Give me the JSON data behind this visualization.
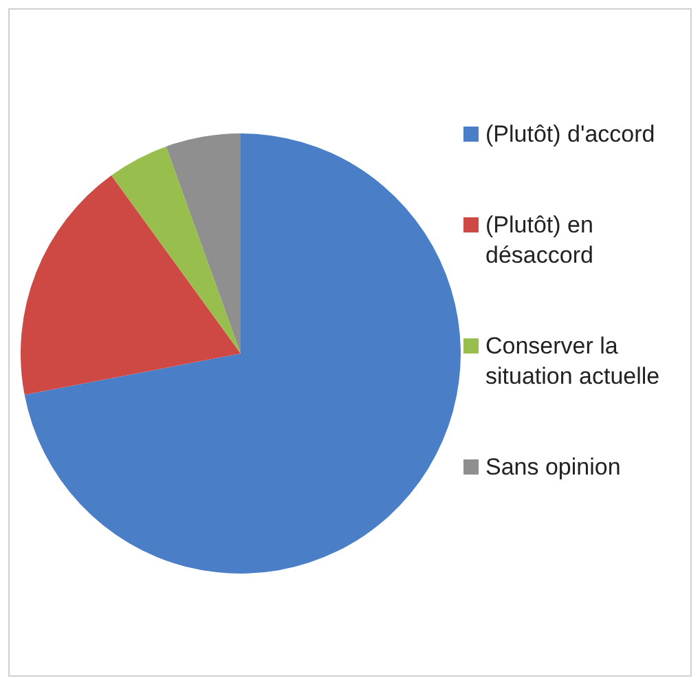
{
  "chart_data": {
    "type": "pie",
    "categories": [
      "(Plutôt) d'accord",
      "(Plutôt) en désaccord",
      "Conserver la situation actuelle",
      "Sans opinion"
    ],
    "values": [
      72,
      18,
      4.5,
      5.5
    ],
    "colors": [
      "#4a7ec6",
      "#cf4944",
      "#98bf4d",
      "#8f8f8f"
    ],
    "legend": "right"
  }
}
